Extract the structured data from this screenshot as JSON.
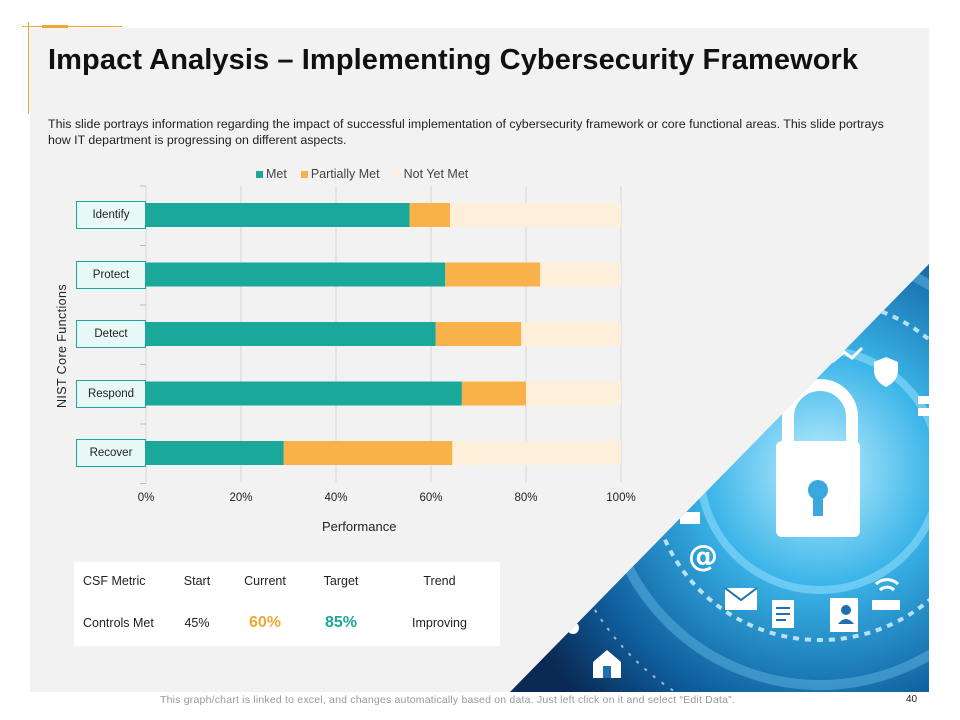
{
  "slide": {
    "title": "Impact Analysis – Implementing Cybersecurity Framework",
    "description": "This slide portrays information regarding the impact of successful implementation of cybersecurity framework or core functional areas. This slide portrays how IT department is progressing on different aspects.",
    "footer_note": "This graph/chart is linked to excel, and changes automatically based on data. Just left click on it and select “Edit Data”.",
    "page_number": "40"
  },
  "colors": {
    "met": "#19a89a",
    "partially_met": "#f9b24a",
    "not_yet_met": "#fdefd9",
    "accent": "#f0a830"
  },
  "chart_data": {
    "type": "bar",
    "orientation": "horizontal",
    "stacked": true,
    "title": "",
    "xlabel": "Performance",
    "ylabel": "NIST Core Functions",
    "xlim": [
      0,
      100
    ],
    "x_ticks": [
      "0%",
      "20%",
      "40%",
      "60%",
      "80%",
      "100%"
    ],
    "legend_position": "top",
    "grid": true,
    "categories": [
      "Identify",
      "Protect",
      "Detect",
      "Respond",
      "Recover"
    ],
    "series": [
      {
        "name": "Met",
        "values": [
          55.5,
          63,
          61,
          66.5,
          29
        ]
      },
      {
        "name": "Partially Met",
        "values": [
          8.5,
          20,
          18,
          13.5,
          35.5
        ]
      },
      {
        "name": "Not Yet Met",
        "values": [
          36,
          17,
          21,
          20,
          35.5
        ]
      }
    ]
  },
  "metrics_table": {
    "headers": [
      "CSF Metric",
      "Start",
      "Current",
      "Target",
      "Trend"
    ],
    "row": {
      "metric": "Controls Met",
      "start": "45%",
      "current": "60%",
      "target": "85%",
      "trend": "Improving"
    }
  },
  "decor_icons": [
    "padlock-icon",
    "shield-icon",
    "at-sign-icon",
    "envelope-icon",
    "document-icon",
    "contact-book-icon",
    "wifi-router-icon",
    "home-icon",
    "gear-icon",
    "chart-icon"
  ]
}
